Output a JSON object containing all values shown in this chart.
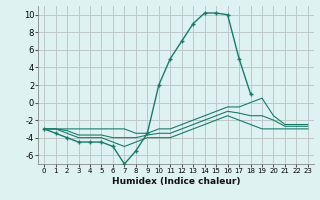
{
  "xlabel": "Humidex (Indice chaleur)",
  "background_color": "#dff2f2",
  "grid_color": "#c0c8c8",
  "line_color": "#1a7a6a",
  "x_values": [
    0,
    1,
    2,
    3,
    4,
    5,
    6,
    7,
    8,
    9,
    10,
    11,
    12,
    13,
    14,
    15,
    16,
    17,
    18,
    19,
    20,
    21,
    22,
    23
  ],
  "series_main": [
    -3,
    -3.5,
    -4,
    -4.5,
    -4.5,
    -4.5,
    -5,
    -7,
    -5.5,
    -3.5,
    2,
    5,
    7,
    9,
    10.2,
    10.2,
    10,
    5,
    1,
    null,
    null,
    null,
    null,
    null
  ],
  "series_upper": [
    -3,
    -3,
    -3,
    -3,
    -3,
    -3,
    -3,
    -3,
    -3.5,
    -3.5,
    -3,
    -3,
    -2.5,
    -2,
    -1.5,
    -1,
    -0.5,
    -0.5,
    0,
    0.5,
    -1.5,
    -2.5,
    -2.5,
    -2.5
  ],
  "series_lower": [
    -3,
    -3,
    -3.5,
    -4,
    -4,
    -4,
    -4.5,
    -5,
    -4.5,
    -4,
    -4,
    -4,
    -3.5,
    -3,
    -2.5,
    -2,
    -1.5,
    -2,
    -2.5,
    -3,
    -3,
    -3,
    -3,
    -3
  ],
  "series_mid": [
    -3,
    -3,
    -3.2,
    -3.7,
    -3.7,
    -3.7,
    -4,
    -4,
    -4,
    -3.7,
    -3.5,
    -3.5,
    -3,
    -2.5,
    -2,
    -1.5,
    -1,
    -1.2,
    -1.5,
    -1.5,
    -2,
    -2.7,
    -2.7,
    -2.7
  ],
  "ylim": [
    -7,
    11
  ],
  "xlim": [
    -0.5,
    23.5
  ],
  "yticks": [
    -6,
    -4,
    -2,
    0,
    2,
    4,
    6,
    8,
    10
  ],
  "xticks": [
    0,
    1,
    2,
    3,
    4,
    5,
    6,
    7,
    8,
    9,
    10,
    11,
    12,
    13,
    14,
    15,
    16,
    17,
    18,
    19,
    20,
    21,
    22,
    23
  ]
}
